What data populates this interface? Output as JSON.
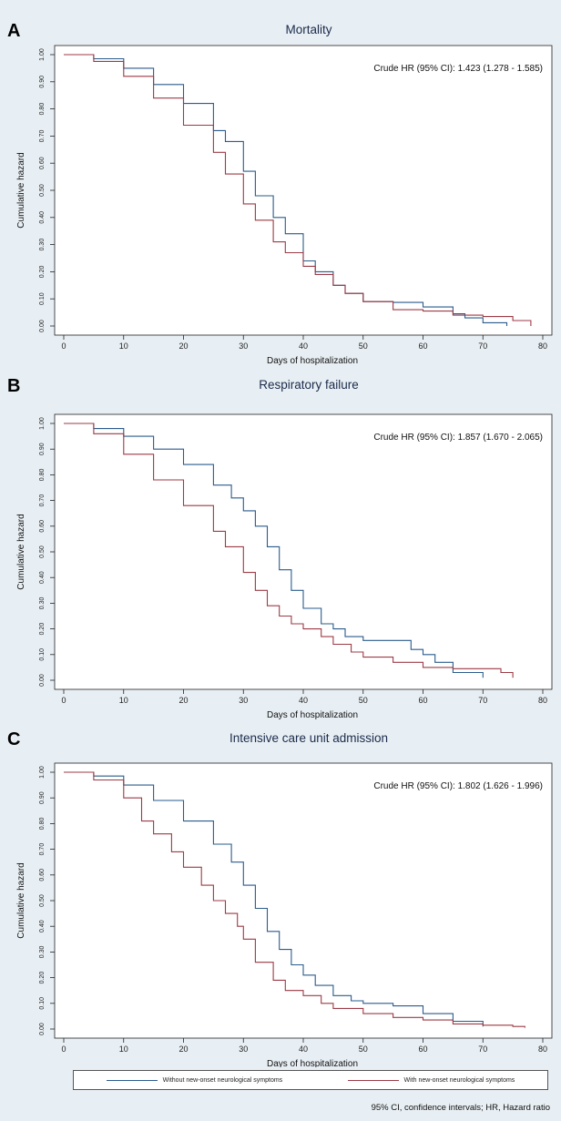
{
  "colors": {
    "series_without": "#2a5b8c",
    "series_with": "#9c3a45",
    "plot_bg": "#ffffff",
    "figure_bg": "#e8eff4"
  },
  "legend": [
    {
      "name": "Without new-onset neurological symptoms",
      "color": "#2a5b8c"
    },
    {
      "name": "With new-onset neurological symptoms",
      "color": "#9c3a45"
    }
  ],
  "footnote": "95% CI, confidence intervals; HR, Hazard ratio",
  "chart_data": [
    {
      "type": "line",
      "panel_label": "A",
      "title": "Mortality",
      "annotation": "Crude HR (95% CI): 1.423 (1.278 - 1.585)",
      "xlabel": "Days of hospitalization",
      "ylabel": "Cumulative hazard",
      "xlim": [
        0,
        80
      ],
      "ylim": [
        0,
        1
      ],
      "xticks": [
        "0",
        "10",
        "20",
        "30",
        "40",
        "50",
        "60",
        "70",
        "80"
      ],
      "yticks": [
        "0.00",
        "0.10",
        "0.20",
        "0.30",
        "0.40",
        "0.50",
        "0.60",
        "0.70",
        "0.80",
        "0.90",
        "1.00"
      ],
      "series": [
        {
          "name": "Without new-onset neurological symptoms",
          "x": [
            0,
            5,
            10,
            15,
            20,
            25,
            27,
            30,
            32,
            35,
            37,
            40,
            42,
            45,
            47,
            50,
            55,
            60,
            65,
            67,
            70,
            74
          ],
          "y": [
            1.0,
            0.985,
            0.95,
            0.89,
            0.82,
            0.72,
            0.68,
            0.57,
            0.48,
            0.4,
            0.34,
            0.24,
            0.2,
            0.15,
            0.12,
            0.09,
            0.087,
            0.07,
            0.045,
            0.03,
            0.012,
            0.0
          ]
        },
        {
          "name": "With new-onset neurological symptoms",
          "x": [
            0,
            5,
            10,
            15,
            20,
            25,
            27,
            30,
            32,
            35,
            37,
            40,
            42,
            45,
            47,
            50,
            55,
            60,
            65,
            70,
            75,
            78
          ],
          "y": [
            1.0,
            0.975,
            0.92,
            0.84,
            0.74,
            0.64,
            0.56,
            0.45,
            0.39,
            0.31,
            0.27,
            0.22,
            0.19,
            0.15,
            0.12,
            0.09,
            0.06,
            0.055,
            0.04,
            0.035,
            0.02,
            0.0
          ]
        }
      ]
    },
    {
      "type": "line",
      "panel_label": "B",
      "title": "Respiratory failure",
      "annotation": "Crude HR (95% CI): 1.857 (1.670 - 2.065)",
      "xlabel": "Days of hospitalization",
      "ylabel": "Cumulative hazard",
      "xlim": [
        0,
        80
      ],
      "ylim": [
        0,
        1
      ],
      "xticks": [
        "0",
        "10",
        "20",
        "30",
        "40",
        "50",
        "60",
        "70",
        "80"
      ],
      "yticks": [
        "0.00",
        "0.10",
        "0.20",
        "0.30",
        "0.40",
        "0.50",
        "0.60",
        "0.70",
        "0.80",
        "0.90",
        "1.00"
      ],
      "series": [
        {
          "name": "Without new-onset neurological symptoms",
          "x": [
            0,
            5,
            10,
            15,
            20,
            25,
            28,
            30,
            32,
            34,
            36,
            38,
            40,
            43,
            45,
            47,
            50,
            55,
            58,
            60,
            62,
            65,
            70
          ],
          "y": [
            1.0,
            0.98,
            0.95,
            0.9,
            0.84,
            0.76,
            0.71,
            0.66,
            0.6,
            0.52,
            0.43,
            0.35,
            0.28,
            0.22,
            0.2,
            0.17,
            0.155,
            0.155,
            0.12,
            0.1,
            0.07,
            0.03,
            0.01
          ]
        },
        {
          "name": "With new-onset neurological symptoms",
          "x": [
            0,
            5,
            10,
            15,
            20,
            25,
            27,
            30,
            32,
            34,
            36,
            38,
            40,
            43,
            45,
            48,
            50,
            55,
            60,
            65,
            70,
            73,
            75
          ],
          "y": [
            1.0,
            0.96,
            0.88,
            0.78,
            0.68,
            0.58,
            0.52,
            0.42,
            0.35,
            0.29,
            0.25,
            0.22,
            0.2,
            0.17,
            0.14,
            0.11,
            0.09,
            0.07,
            0.05,
            0.045,
            0.045,
            0.03,
            0.01
          ]
        }
      ]
    },
    {
      "type": "line",
      "panel_label": "C",
      "title": "Intensive care unit admission",
      "annotation": "Crude HR (95% CI): 1.802 (1.626 - 1.996)",
      "xlabel": "Days of hospitalization",
      "ylabel": "Cumulative hazard",
      "xlim": [
        0,
        80
      ],
      "ylim": [
        0,
        1
      ],
      "xticks": [
        "0",
        "10",
        "20",
        "30",
        "40",
        "50",
        "60",
        "70",
        "80"
      ],
      "yticks": [
        "0.00",
        "0.10",
        "0.20",
        "0.30",
        "0.40",
        "0.50",
        "0.60",
        "0.70",
        "0.80",
        "0.90",
        "1.00"
      ],
      "series": [
        {
          "name": "Without new-onset neurological symptoms",
          "x": [
            0,
            5,
            10,
            15,
            20,
            25,
            28,
            30,
            32,
            34,
            36,
            38,
            40,
            42,
            45,
            48,
            50,
            55,
            60,
            65,
            70
          ],
          "y": [
            1.0,
            0.985,
            0.95,
            0.89,
            0.81,
            0.72,
            0.65,
            0.56,
            0.47,
            0.38,
            0.31,
            0.25,
            0.21,
            0.17,
            0.13,
            0.11,
            0.1,
            0.09,
            0.06,
            0.03,
            0.01
          ]
        },
        {
          "name": "With new-onset neurological symptoms",
          "x": [
            0,
            5,
            10,
            13,
            15,
            18,
            20,
            23,
            25,
            27,
            29,
            30,
            32,
            35,
            37,
            40,
            43,
            45,
            50,
            55,
            60,
            65,
            70,
            75,
            77
          ],
          "y": [
            1.0,
            0.97,
            0.9,
            0.81,
            0.76,
            0.69,
            0.63,
            0.56,
            0.5,
            0.45,
            0.4,
            0.35,
            0.26,
            0.19,
            0.15,
            0.13,
            0.1,
            0.08,
            0.06,
            0.045,
            0.035,
            0.02,
            0.015,
            0.01,
            0.005
          ]
        }
      ]
    }
  ]
}
